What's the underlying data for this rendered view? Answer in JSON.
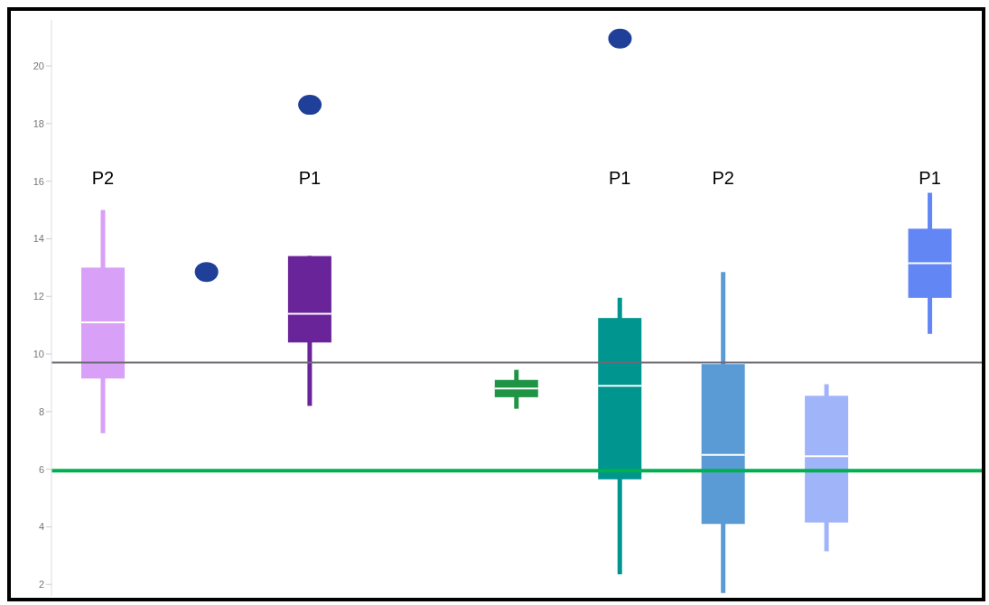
{
  "chart_data": {
    "type": "box",
    "categories": [
      null,
      null,
      null,
      null,
      null,
      null,
      null,
      null,
      null
    ],
    "series": [
      {
        "colors": [
          "#d9a0f8",
          null,
          "#6a2499",
          null,
          "#1e9444",
          "#00958f",
          "#5b9bd5",
          "#a0b4fa",
          "#6287f5"
        ],
        "value_labels": [
          "P2",
          null,
          "P1",
          null,
          null,
          "P1",
          "P2",
          null,
          "P1"
        ],
        "boxes": [
          {
            "low": 7.25,
            "q1": 9.15,
            "median": 11.1,
            "q3": 13.0,
            "high": 15.0
          },
          null,
          {
            "low": 8.2,
            "q1": 10.4,
            "median": 11.4,
            "q3": 13.4,
            "high": 13.4
          },
          null,
          {
            "low": 8.1,
            "q1": 8.5,
            "median": 8.8,
            "q3": 9.1,
            "high": 9.45
          },
          {
            "low": 2.35,
            "q1": 5.65,
            "median": 8.9,
            "q3": 11.25,
            "high": 11.95
          },
          {
            "low": 1.7,
            "q1": 4.1,
            "median": 6.5,
            "q3": 9.65,
            "high": 12.85
          },
          {
            "low": 3.15,
            "q1": 4.15,
            "median": 6.45,
            "q3": 8.55,
            "high": 8.95
          },
          {
            "low": 10.7,
            "q1": 11.95,
            "median": 13.15,
            "q3": 14.35,
            "high": 15.6
          }
        ]
      },
      {
        "type": "scatter",
        "color": "#1f3f99",
        "values": [
          null,
          12.85,
          18.65,
          null,
          null,
          20.95,
          null,
          null,
          null
        ]
      }
    ],
    "ylim": [
      1.6,
      21.6
    ],
    "yticks": [
      2,
      4,
      6,
      8,
      10,
      12,
      14,
      16,
      18,
      20
    ],
    "ref_lines": [
      {
        "axis": "y",
        "value": 9.7,
        "color": "#6d6a75"
      },
      {
        "axis": "y",
        "value": 5.95,
        "color": "#00b050"
      }
    ],
    "grid": false,
    "legend": false,
    "marker": "circle"
  }
}
